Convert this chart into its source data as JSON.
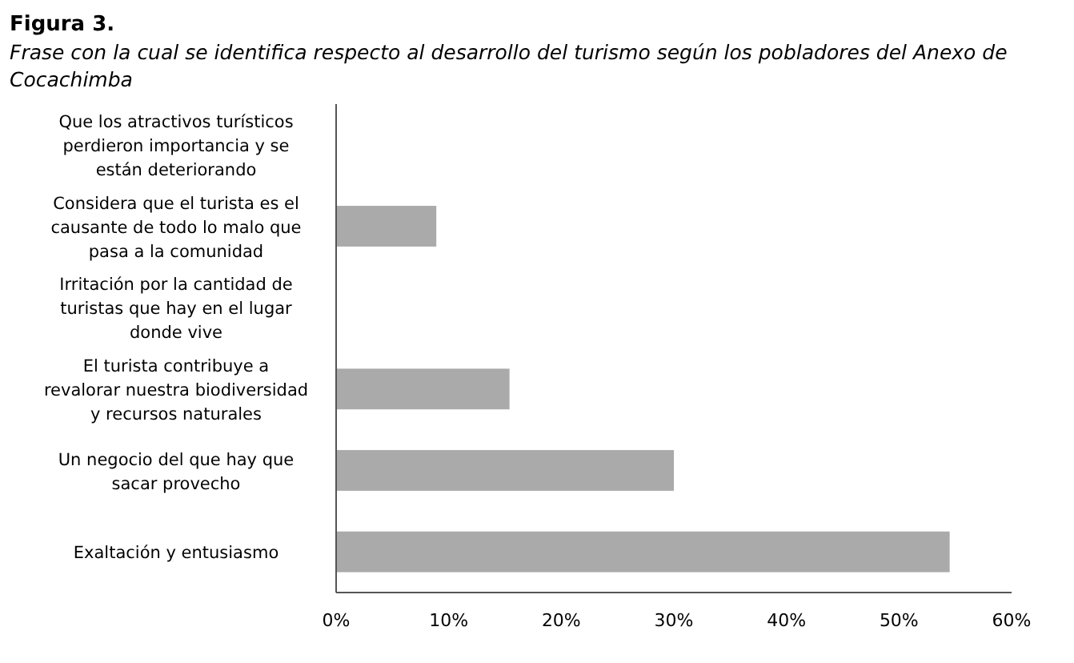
{
  "chart_data": {
    "type": "bar",
    "orientation": "horizontal",
    "title": "Figura 3.",
    "subtitle": "Frase con la cual se identifica respecto al desarrollo del turismo según los pobladores del Anexo de Cocachimba",
    "categories": [
      "Que los atractivos turísticos perdieron importancia y se están deteriorando",
      "Considera que el turista es el causante de todo lo malo que pasa a la comunidad",
      "Irritación por la cantidad de turistas que hay en el lugar donde vive",
      "El turista contribuye a revalorar nuestra biodiversidad y recursos naturales",
      "Un negocio del que hay que sacar provecho",
      "Exaltación y entusiasmo"
    ],
    "values": [
      0,
      8.9,
      0,
      15.4,
      30,
      54.5
    ],
    "color": "#aaaaaa",
    "xlim": [
      0,
      60
    ],
    "xticks": [
      {
        "value": 0,
        "label": "0%"
      },
      {
        "value": 10,
        "label": "10%"
      },
      {
        "value": 20,
        "label": "20%"
      },
      {
        "value": 30,
        "label": "30%"
      },
      {
        "value": 40,
        "label": "40%"
      },
      {
        "value": 50,
        "label": "50%"
      },
      {
        "value": 60,
        "label": "60%"
      }
    ],
    "grid": false
  }
}
